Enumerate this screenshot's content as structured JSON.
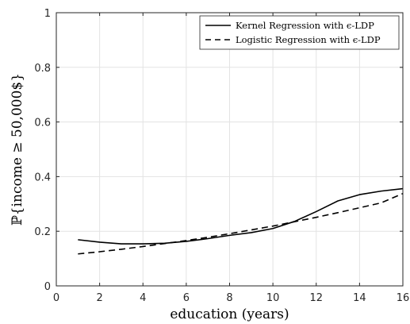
{
  "chart_data": {
    "type": "line",
    "xlabel": "education (years)",
    "ylabel": "ℙ{income ≥ 50,000$}",
    "xlim": [
      0,
      16
    ],
    "ylim": [
      0,
      1
    ],
    "xticks": [
      0,
      2,
      4,
      6,
      8,
      10,
      12,
      14,
      16
    ],
    "yticks": [
      0,
      0.2,
      0.4,
      0.6,
      0.8,
      1
    ],
    "ytick_labels": [
      "0",
      "0.2",
      "0.4",
      "0.6",
      "0.8",
      "1"
    ],
    "grid": true,
    "legend_position": "top-right",
    "series": [
      {
        "name": "Kernel Regression with ϵ-LDP",
        "style": "solid",
        "color": "#000000",
        "x": [
          1,
          2,
          3,
          4,
          5,
          6,
          7,
          8,
          9,
          10,
          11,
          12,
          13,
          14,
          15,
          16
        ],
        "y": [
          0.169,
          0.16,
          0.154,
          0.154,
          0.156,
          0.163,
          0.173,
          0.185,
          0.195,
          0.21,
          0.236,
          0.272,
          0.311,
          0.334,
          0.347,
          0.356
        ]
      },
      {
        "name": "Logistic Regression with ϵ-LDP",
        "style": "dashed",
        "color": "#000000",
        "x": [
          1,
          2,
          3,
          4,
          5,
          6,
          7,
          8,
          9,
          10,
          11,
          12,
          13,
          14,
          15,
          16
        ],
        "y": [
          0.117,
          0.125,
          0.134,
          0.144,
          0.155,
          0.166,
          0.178,
          0.191,
          0.205,
          0.219,
          0.235,
          0.251,
          0.268,
          0.286,
          0.304,
          0.338
        ]
      }
    ]
  }
}
